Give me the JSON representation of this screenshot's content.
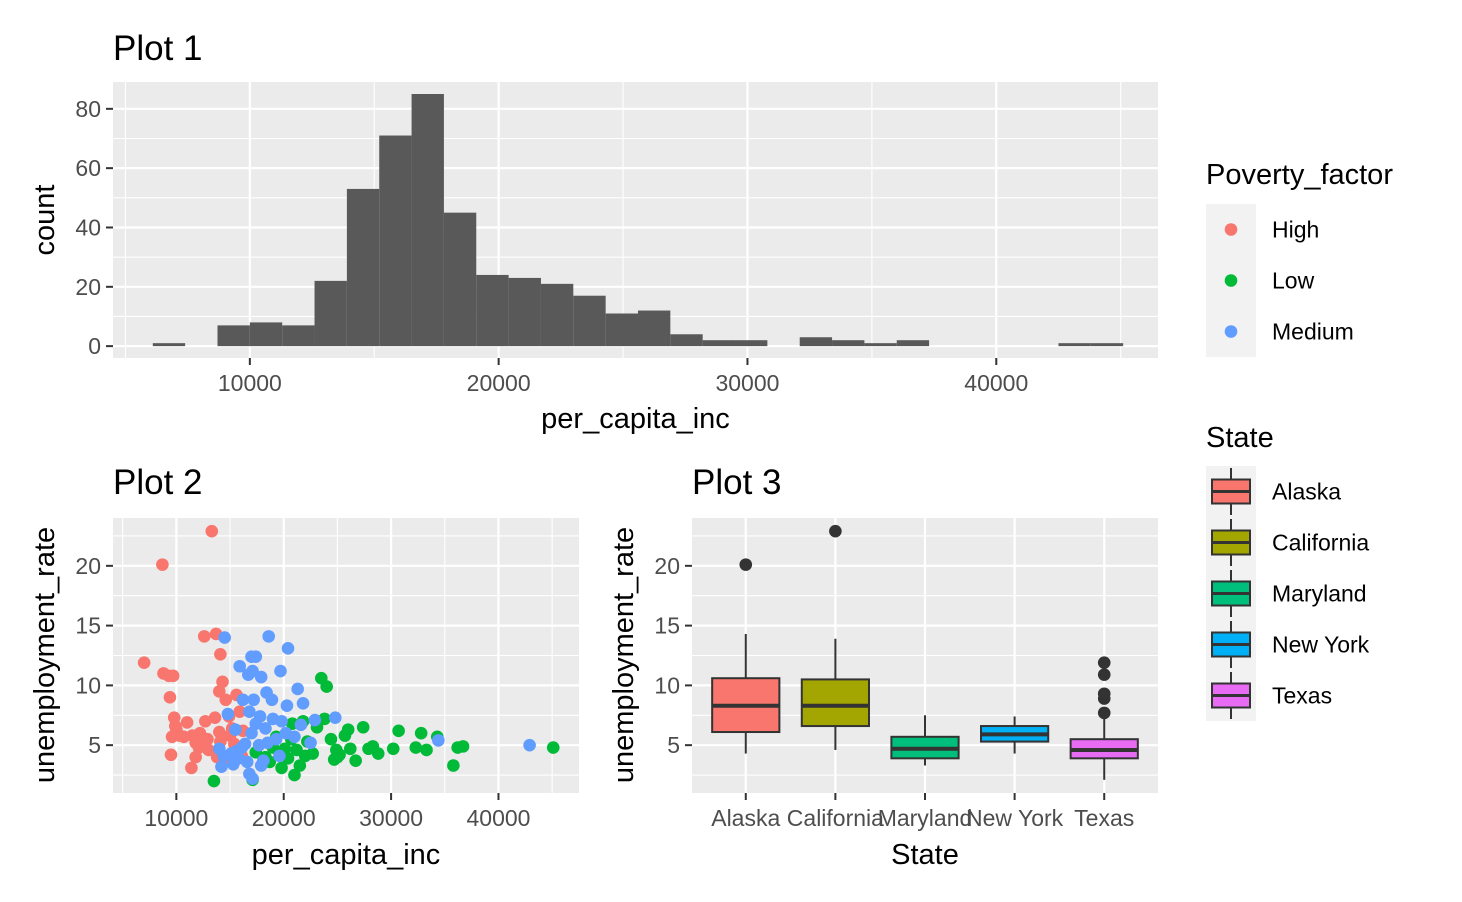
{
  "chart_data": [
    {
      "type": "bar",
      "title": "Plot 1",
      "xlabel": "per_capita_inc",
      "ylabel": "count",
      "xlim": [
        4500,
        46500
      ],
      "ylim": [
        -4,
        85
      ],
      "x_ticks": [
        10000,
        20000,
        30000,
        40000
      ],
      "y_ticks": [
        0,
        20,
        40,
        60,
        80
      ],
      "bins": [
        {
          "x0": 6100,
          "x1": 7400,
          "count": 1
        },
        {
          "x0": 8700,
          "x1": 10000,
          "count": 7
        },
        {
          "x0": 10000,
          "x1": 11300,
          "count": 8
        },
        {
          "x0": 11300,
          "x1": 12600,
          "count": 7
        },
        {
          "x0": 12600,
          "x1": 13900,
          "count": 22
        },
        {
          "x0": 13900,
          "x1": 15200,
          "count": 53
        },
        {
          "x0": 15200,
          "x1": 16500,
          "count": 71
        },
        {
          "x0": 16500,
          "x1": 17800,
          "count": 85
        },
        {
          "x0": 17800,
          "x1": 19100,
          "count": 45
        },
        {
          "x0": 19100,
          "x1": 20400,
          "count": 24
        },
        {
          "x0": 20400,
          "x1": 21700,
          "count": 23
        },
        {
          "x0": 21700,
          "x1": 23000,
          "count": 21
        },
        {
          "x0": 23000,
          "x1": 24300,
          "count": 17
        },
        {
          "x0": 24300,
          "x1": 25600,
          "count": 11
        },
        {
          "x0": 25600,
          "x1": 26900,
          "count": 12
        },
        {
          "x0": 26900,
          "x1": 28200,
          "count": 4
        },
        {
          "x0": 28200,
          "x1": 29500,
          "count": 2
        },
        {
          "x0": 29500,
          "x1": 30800,
          "count": 2
        },
        {
          "x0": 32100,
          "x1": 33400,
          "count": 3
        },
        {
          "x0": 33400,
          "x1": 34700,
          "count": 2
        },
        {
          "x0": 34700,
          "x1": 36000,
          "count": 1
        },
        {
          "x0": 36000,
          "x1": 37300,
          "count": 2
        },
        {
          "x0": 42500,
          "x1": 43800,
          "count": 1
        },
        {
          "x0": 43800,
          "x1": 45100,
          "count": 1
        }
      ]
    },
    {
      "type": "scatter",
      "title": "Plot 2",
      "xlabel": "per_capita_inc",
      "ylabel": "unemployment_rate",
      "xlim": [
        4100,
        47500
      ],
      "ylim": [
        1,
        24
      ],
      "x_ticks": [
        10000,
        20000,
        30000,
        40000
      ],
      "y_ticks": [
        5,
        10,
        15,
        20
      ],
      "series": [
        {
          "name": "High",
          "color": "#F8766D",
          "points": [
            [
              7000,
              11.9
            ],
            [
              8700,
              20.1
            ],
            [
              8800,
              11.0
            ],
            [
              9300,
              10.8
            ],
            [
              9700,
              10.8
            ],
            [
              9400,
              9.0
            ],
            [
              9800,
              7.3
            ],
            [
              9900,
              6.6
            ],
            [
              9600,
              5.7
            ],
            [
              10000,
              6.3
            ],
            [
              10300,
              5.8
            ],
            [
              10700,
              5.7
            ],
            [
              11000,
              6.9
            ],
            [
              11500,
              5.8
            ],
            [
              11800,
              5.2
            ],
            [
              12300,
              5.2
            ],
            [
              12100,
              4.8
            ],
            [
              9500,
              4.2
            ],
            [
              11400,
              3.1
            ],
            [
              12200,
              6.0
            ],
            [
              12600,
              14.1
            ],
            [
              13300,
              22.9
            ],
            [
              13700,
              14.3
            ],
            [
              14100,
              12.6
            ],
            [
              14300,
              10.3
            ],
            [
              13600,
              7.3
            ],
            [
              14000,
              6.1
            ],
            [
              14600,
              8.8
            ],
            [
              14900,
              7.4
            ],
            [
              15200,
              6.4
            ],
            [
              14100,
              5.3
            ],
            [
              15400,
              5.1
            ],
            [
              15800,
              4.5
            ],
            [
              16200,
              6.2
            ],
            [
              13800,
              4.0
            ],
            [
              14400,
              3.6
            ],
            [
              15100,
              3.9
            ],
            [
              12900,
              5.5
            ],
            [
              12700,
              7.0
            ],
            [
              15600,
              9.2
            ],
            [
              15900,
              7.8
            ],
            [
              16100,
              4.1
            ],
            [
              13000,
              4.6
            ],
            [
              11800,
              4.0
            ],
            [
              14000,
              9.5
            ],
            [
              15000,
              5.8
            ]
          ]
        },
        {
          "name": "Low",
          "color": "#00BA38",
          "points": [
            [
              13500,
              2.0
            ],
            [
              17100,
              2.1
            ],
            [
              17400,
              4.4
            ],
            [
              18300,
              4.0
            ],
            [
              18700,
              3.6
            ],
            [
              19300,
              5.7
            ],
            [
              20100,
              4.7
            ],
            [
              20400,
              3.9
            ],
            [
              20700,
              5.5
            ],
            [
              21000,
              2.5
            ],
            [
              21500,
              3.3
            ],
            [
              21800,
              7.0
            ],
            [
              22200,
              5.3
            ],
            [
              22700,
              4.3
            ],
            [
              23100,
              6.5
            ],
            [
              23500,
              10.6
            ],
            [
              24000,
              9.9
            ],
            [
              24400,
              5.5
            ],
            [
              24900,
              4.6
            ],
            [
              25200,
              4.2
            ],
            [
              25700,
              5.8
            ],
            [
              26200,
              4.7
            ],
            [
              26700,
              3.7
            ],
            [
              27400,
              6.5
            ],
            [
              27900,
              4.7
            ],
            [
              28300,
              4.9
            ],
            [
              28800,
              4.3
            ],
            [
              30200,
              4.7
            ],
            [
              30700,
              6.2
            ],
            [
              32300,
              4.8
            ],
            [
              32800,
              6.0
            ],
            [
              33300,
              4.6
            ],
            [
              34300,
              5.7
            ],
            [
              35800,
              3.3
            ],
            [
              36200,
              4.8
            ],
            [
              36700,
              4.9
            ],
            [
              45100,
              4.8
            ],
            [
              19800,
              3.1
            ],
            [
              22000,
              4.1
            ],
            [
              23800,
              7.2
            ],
            [
              25000,
              4.0
            ],
            [
              26000,
              6.3
            ],
            [
              21200,
              4.6
            ],
            [
              20800,
              6.8
            ],
            [
              24700,
              3.8
            ],
            [
              19000,
              4.8
            ]
          ]
        },
        {
          "name": "Medium",
          "color": "#619CFF",
          "points": [
            [
              14500,
              14.0
            ],
            [
              18600,
              14.1
            ],
            [
              20400,
              13.1
            ],
            [
              17000,
              12.4
            ],
            [
              17400,
              12.4
            ],
            [
              15900,
              11.6
            ],
            [
              16700,
              10.9
            ],
            [
              17100,
              11.2
            ],
            [
              17900,
              10.7
            ],
            [
              19700,
              11.2
            ],
            [
              21300,
              9.7
            ],
            [
              18400,
              9.4
            ],
            [
              17200,
              8.8
            ],
            [
              16200,
              8.8
            ],
            [
              18900,
              8.8
            ],
            [
              21800,
              8.5
            ],
            [
              20300,
              8.3
            ],
            [
              16800,
              7.8
            ],
            [
              17800,
              7.4
            ],
            [
              19000,
              7.2
            ],
            [
              19800,
              7.0
            ],
            [
              17400,
              6.8
            ],
            [
              18300,
              6.4
            ],
            [
              17000,
              6.0
            ],
            [
              21600,
              6.7
            ],
            [
              22900,
              7.1
            ],
            [
              24800,
              7.3
            ],
            [
              21000,
              5.7
            ],
            [
              19300,
              5.5
            ],
            [
              18500,
              5.2
            ],
            [
              17700,
              5.0
            ],
            [
              16400,
              5.1
            ],
            [
              16100,
              4.8
            ],
            [
              15600,
              4.5
            ],
            [
              15100,
              4.3
            ],
            [
              14400,
              4.1
            ],
            [
              15800,
              3.9
            ],
            [
              16600,
              3.6
            ],
            [
              17900,
              3.3
            ],
            [
              15300,
              3.4
            ],
            [
              16800,
              2.6
            ],
            [
              17100,
              2.2
            ],
            [
              14200,
              3.2
            ],
            [
              15500,
              6.3
            ],
            [
              14800,
              7.6
            ],
            [
              20200,
              6.0
            ],
            [
              19600,
              4.1
            ],
            [
              34400,
              5.4
            ],
            [
              42900,
              5.0
            ],
            [
              22500,
              5.2
            ],
            [
              14000,
              4.7
            ],
            [
              18100,
              3.7
            ]
          ]
        }
      ]
    },
    {
      "type": "box",
      "title": "Plot 3",
      "xlabel": "State",
      "ylabel": "unemployment_rate",
      "ylim": [
        1,
        24
      ],
      "y_ticks": [
        5,
        10,
        15,
        20
      ],
      "categories": [
        "Alaska",
        "California",
        "Maryland",
        "New York",
        "Texas"
      ],
      "boxes": [
        {
          "name": "Alaska",
          "color": "#F8766D",
          "lower_whisker": 4.3,
          "q1": 6.1,
          "median": 8.3,
          "q3": 10.6,
          "upper_whisker": 14.3,
          "outliers": [
            20.1
          ]
        },
        {
          "name": "California",
          "color": "#A3A500",
          "lower_whisker": 4.6,
          "q1": 6.6,
          "median": 8.3,
          "q3": 10.5,
          "upper_whisker": 13.9,
          "outliers": [
            22.9
          ]
        },
        {
          "name": "Maryland",
          "color": "#00BF7D",
          "lower_whisker": 3.3,
          "q1": 3.9,
          "median": 4.7,
          "q3": 5.7,
          "upper_whisker": 7.5,
          "outliers": []
        },
        {
          "name": "New York",
          "color": "#00B0F6",
          "lower_whisker": 4.3,
          "q1": 5.3,
          "median": 5.9,
          "q3": 6.6,
          "upper_whisker": 7.4,
          "outliers": []
        },
        {
          "name": "Texas",
          "color": "#E76BF3",
          "lower_whisker": 2.1,
          "q1": 3.9,
          "median": 4.6,
          "q3": 5.5,
          "upper_whisker": 7.3,
          "outliers": [
            7.7,
            8.9,
            9.3,
            10.9,
            11.9
          ]
        }
      ]
    }
  ],
  "legends": {
    "poverty": {
      "title": "Poverty_factor",
      "items": [
        {
          "label": "High",
          "color": "#F8766D"
        },
        {
          "label": "Low",
          "color": "#00BA38"
        },
        {
          "label": "Medium",
          "color": "#619CFF"
        }
      ]
    },
    "state": {
      "title": "State",
      "items": [
        {
          "label": "Alaska",
          "color": "#F8766D"
        },
        {
          "label": "California",
          "color": "#A3A500"
        },
        {
          "label": "Maryland",
          "color": "#00BF7D"
        },
        {
          "label": "New York",
          "color": "#00B0F6"
        },
        {
          "label": "Texas",
          "color": "#E76BF3"
        }
      ]
    }
  }
}
